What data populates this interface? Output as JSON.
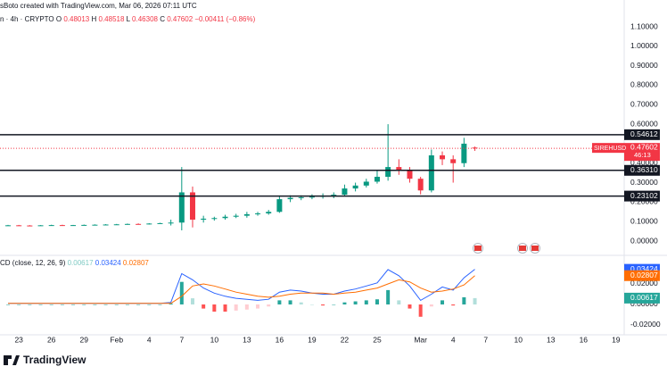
{
  "header": {
    "author": "sBoto created with TradingView.com, Mar 06, 2026 07:11 UTC",
    "symbol": "n · 4h · CRYPTO",
    "ohlc": [
      {
        "label": "O",
        "value": "0.48013"
      },
      {
        "label": "H",
        "value": "0.48518"
      },
      {
        "label": "L",
        "value": "0.46308"
      },
      {
        "label": "C",
        "value": "0.47602"
      }
    ],
    "change": "−0.00411 (−0.86%)"
  },
  "logo": "TradingView",
  "chart_data": [
    {
      "type": "candlestick",
      "up_color": "#089981",
      "down_color": "#f23645",
      "x": [
        "2026-01-22",
        "2026-01-23",
        "2026-01-24",
        "2026-01-25",
        "2026-01-26",
        "2026-01-27",
        "2026-01-28",
        "2026-01-29",
        "2026-01-30",
        "2026-01-31",
        "2026-02-01",
        "2026-02-02",
        "2026-02-03",
        "2026-02-04",
        "2026-02-05",
        "2026-02-06",
        "2026-02-07",
        "2026-02-08",
        "2026-02-09",
        "2026-02-10",
        "2026-02-11",
        "2026-02-12",
        "2026-02-13",
        "2026-02-14",
        "2026-02-15",
        "2026-02-16",
        "2026-02-17",
        "2026-02-18",
        "2026-02-19",
        "2026-02-20",
        "2026-02-21",
        "2026-02-22",
        "2026-02-23",
        "2026-02-24",
        "2026-02-25",
        "2026-02-26",
        "2026-02-27",
        "2026-02-28",
        "2026-03-01",
        "2026-03-02",
        "2026-03-03",
        "2026-03-04",
        "2026-03-05",
        "2026-03-06"
      ],
      "open": [
        0.08,
        0.081,
        0.08,
        0.079,
        0.081,
        0.082,
        0.08,
        0.082,
        0.083,
        0.084,
        0.085,
        0.086,
        0.088,
        0.087,
        0.09,
        0.092,
        0.095,
        0.25,
        0.11,
        0.115,
        0.118,
        0.125,
        0.13,
        0.138,
        0.142,
        0.15,
        0.215,
        0.222,
        0.225,
        0.228,
        0.232,
        0.238,
        0.27,
        0.285,
        0.305,
        0.33,
        0.38,
        0.36,
        0.32,
        0.26,
        0.44,
        0.42,
        0.4,
        0.48013
      ],
      "high": [
        0.083,
        0.083,
        0.082,
        0.082,
        0.084,
        0.084,
        0.083,
        0.085,
        0.086,
        0.087,
        0.088,
        0.09,
        0.091,
        0.092,
        0.094,
        0.11,
        0.38,
        0.28,
        0.13,
        0.125,
        0.135,
        0.14,
        0.15,
        0.15,
        0.16,
        0.23,
        0.235,
        0.235,
        0.24,
        0.245,
        0.25,
        0.29,
        0.3,
        0.32,
        0.36,
        0.6,
        0.42,
        0.38,
        0.33,
        0.47,
        0.46,
        0.44,
        0.53,
        0.48518
      ],
      "low": [
        0.078,
        0.079,
        0.077,
        0.078,
        0.08,
        0.079,
        0.078,
        0.08,
        0.081,
        0.082,
        0.083,
        0.084,
        0.085,
        0.085,
        0.088,
        0.08,
        0.055,
        0.07,
        0.095,
        0.105,
        0.11,
        0.118,
        0.12,
        0.13,
        0.135,
        0.145,
        0.2,
        0.21,
        0.215,
        0.218,
        0.22,
        0.23,
        0.255,
        0.275,
        0.295,
        0.31,
        0.34,
        0.3,
        0.24,
        0.25,
        0.39,
        0.3,
        0.38,
        0.46308
      ],
      "close": [
        0.081,
        0.08,
        0.079,
        0.081,
        0.082,
        0.08,
        0.082,
        0.083,
        0.084,
        0.085,
        0.086,
        0.088,
        0.087,
        0.09,
        0.092,
        0.095,
        0.25,
        0.11,
        0.115,
        0.118,
        0.125,
        0.13,
        0.138,
        0.142,
        0.15,
        0.215,
        0.222,
        0.225,
        0.228,
        0.232,
        0.238,
        0.27,
        0.285,
        0.305,
        0.33,
        0.38,
        0.36,
        0.32,
        0.26,
        0.44,
        0.42,
        0.4,
        0.5,
        0.47602
      ],
      "xlim": [
        "2026-01-22",
        "2026-03-20"
      ],
      "xticks": [
        {
          "value": "2026-01-23",
          "label": "23"
        },
        {
          "value": "2026-01-26",
          "label": "26"
        },
        {
          "value": "2026-01-29",
          "label": "29"
        },
        {
          "value": "2026-02-01",
          "label": "Feb"
        },
        {
          "value": "2026-02-04",
          "label": "4"
        },
        {
          "value": "2026-02-07",
          "label": "7"
        },
        {
          "value": "2026-02-10",
          "label": "10"
        },
        {
          "value": "2026-02-13",
          "label": "13"
        },
        {
          "value": "2026-02-16",
          "label": "16"
        },
        {
          "value": "2026-02-19",
          "label": "19"
        },
        {
          "value": "2026-02-22",
          "label": "22"
        },
        {
          "value": "2026-02-25",
          "label": "25"
        },
        {
          "value": "2026-03-01",
          "label": "Mar"
        },
        {
          "value": "2026-03-04",
          "label": "4"
        },
        {
          "value": "2026-03-07",
          "label": "7"
        },
        {
          "value": "2026-03-10",
          "label": "10"
        },
        {
          "value": "2026-03-13",
          "label": "13"
        },
        {
          "value": "2026-03-16",
          "label": "16"
        },
        {
          "value": "2026-03-19",
          "label": "19"
        }
      ],
      "ylim": [
        -0.0687,
        1.2375
      ],
      "yticks": [
        {
          "value": 1.1,
          "label": "1.10000"
        },
        {
          "value": 1.0,
          "label": "1.00000"
        },
        {
          "value": 0.9,
          "label": "0.90000"
        },
        {
          "value": 0.8,
          "label": "0.80000"
        },
        {
          "value": 0.7,
          "label": "0.70000"
        },
        {
          "value": 0.6,
          "label": "0.60000"
        },
        {
          "value": 0.4,
          "label": "0.40000"
        },
        {
          "value": 0.3,
          "label": "0.30000"
        },
        {
          "value": 0.2,
          "label": "0.20000"
        },
        {
          "value": 0.1,
          "label": "0.10000"
        },
        {
          "value": 0,
          "label": "0.00000"
        }
      ],
      "levels": [
        {
          "value": 0.54612,
          "label": "0.54612"
        },
        {
          "value": 0.3631,
          "label": "0.36310"
        },
        {
          "value": 0.23102,
          "label": "0.23102"
        }
      ],
      "last_price": {
        "symbol": "SIREHUSD",
        "value": 0.47602,
        "countdown": "46:13",
        "color": "#f23645"
      }
    },
    {
      "type": "macd",
      "title": "CD (close, 12, 26, 9)",
      "x": [
        "2026-01-22",
        "2026-01-23",
        "2026-01-24",
        "2026-01-25",
        "2026-01-26",
        "2026-01-27",
        "2026-01-28",
        "2026-01-29",
        "2026-01-30",
        "2026-01-31",
        "2026-02-01",
        "2026-02-02",
        "2026-02-03",
        "2026-02-04",
        "2026-02-05",
        "2026-02-06",
        "2026-02-07",
        "2026-02-08",
        "2026-02-09",
        "2026-02-10",
        "2026-02-11",
        "2026-02-12",
        "2026-02-13",
        "2026-02-14",
        "2026-02-15",
        "2026-02-16",
        "2026-02-17",
        "2026-02-18",
        "2026-02-19",
        "2026-02-20",
        "2026-02-21",
        "2026-02-22",
        "2026-02-23",
        "2026-02-24",
        "2026-02-25",
        "2026-02-26",
        "2026-02-27",
        "2026-02-28",
        "2026-03-01",
        "2026-03-02",
        "2026-03-03",
        "2026-03-04",
        "2026-03-05",
        "2026-03-06"
      ],
      "histogram": {
        "color": "#26a69a",
        "down_color": "#ff5252",
        "values": [
          0,
          0,
          0,
          0,
          0,
          0,
          0,
          0,
          0,
          0,
          0,
          0,
          0,
          0,
          0,
          0.001,
          0.022,
          0.006,
          -0.004,
          -0.007,
          -0.007,
          -0.006,
          -0.005,
          -0.004,
          -0.002,
          0.004,
          0.004,
          0.002,
          0,
          -0.001,
          0,
          0.002,
          0.003,
          0.004,
          0.005,
          0.014,
          0.004,
          -0.004,
          -0.012,
          -0.002,
          0.004,
          -0.001,
          0.007,
          0.00617
        ]
      },
      "macd": {
        "color": "#2962ff",
        "values": [
          0.001,
          0.001,
          0.001,
          0.001,
          0.001,
          0.001,
          0.001,
          0.001,
          0.001,
          0.001,
          0.001,
          0.001,
          0.001,
          0.001,
          0.001,
          0.002,
          0.03,
          0.024,
          0.016,
          0.011,
          0.008,
          0.006,
          0.005,
          0.004,
          0.005,
          0.012,
          0.014,
          0.013,
          0.011,
          0.01,
          0.01,
          0.013,
          0.015,
          0.018,
          0.021,
          0.034,
          0.028,
          0.018,
          0.004,
          0.01,
          0.017,
          0.014,
          0.026,
          0.03424
        ]
      },
      "signal": {
        "color": "#ff6d00",
        "values": [
          0.001,
          0.001,
          0.001,
          0.001,
          0.001,
          0.001,
          0.001,
          0.001,
          0.001,
          0.001,
          0.001,
          0.001,
          0.001,
          0.001,
          0.001,
          0.001,
          0.008,
          0.018,
          0.02,
          0.018,
          0.015,
          0.012,
          0.01,
          0.008,
          0.007,
          0.008,
          0.01,
          0.011,
          0.011,
          0.011,
          0.01,
          0.011,
          0.012,
          0.014,
          0.016,
          0.02,
          0.024,
          0.022,
          0.016,
          0.012,
          0.013,
          0.015,
          0.019,
          0.02807
        ]
      },
      "ylim": [
        -0.0296,
        0.0461
      ],
      "yticks": [
        {
          "value": 0.02,
          "label": "0.02000"
        },
        {
          "value": 0,
          "label": "0.00000"
        },
        {
          "value": -0.02,
          "label": "-0.02000"
        }
      ]
    }
  ]
}
